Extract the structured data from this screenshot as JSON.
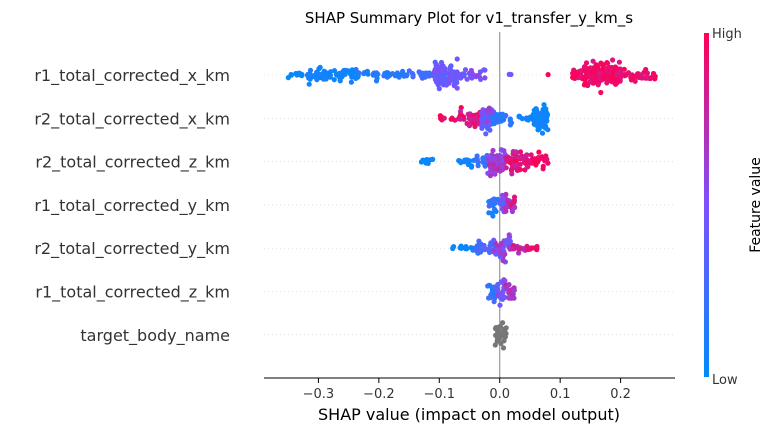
{
  "chart_data": {
    "type": "scatter",
    "title": "SHAP Summary Plot for v1_transfer_y_km_s",
    "xlabel": "SHAP value (impact on model output)",
    "xlim": [
      -0.39,
      0.29
    ],
    "xticks": [
      {
        "value": -0.3,
        "label": "−0.3"
      },
      {
        "value": -0.2,
        "label": "−0.2"
      },
      {
        "value": -0.1,
        "label": "−0.1"
      },
      {
        "value": 0.0,
        "label": "0.0"
      },
      {
        "value": 0.1,
        "label": "0.1"
      },
      {
        "value": 0.2,
        "label": "0.2"
      }
    ],
    "colorbar": {
      "label": "Feature value",
      "high_label": "High",
      "low_label": "Low",
      "low_color": "#008bfb",
      "high_color": "#ff0052"
    },
    "no_value_color": "#777777",
    "features": [
      {
        "name": "r1_total_corrected_x_km",
        "segments": [
          {
            "x": [
              -0.355,
              -0.32
            ],
            "count": 10,
            "width": 0.25,
            "f": [
              0.0,
              0.05
            ]
          },
          {
            "x": [
              -0.32,
              -0.24
            ],
            "count": 60,
            "width": 0.55,
            "f": [
              0.0,
              0.12
            ]
          },
          {
            "x": [
              -0.24,
              -0.16
            ],
            "count": 40,
            "width": 0.4,
            "f": [
              0.05,
              0.2
            ]
          },
          {
            "x": [
              -0.16,
              -0.11
            ],
            "count": 25,
            "width": 0.35,
            "f": [
              0.15,
              0.35
            ]
          },
          {
            "x": [
              -0.11,
              -0.07
            ],
            "count": 90,
            "width": 0.95,
            "f": [
              0.35,
              0.55
            ]
          },
          {
            "x": [
              -0.07,
              -0.02
            ],
            "count": 30,
            "width": 0.35,
            "f": [
              0.4,
              0.6
            ]
          },
          {
            "x": [
              0.015,
              0.02
            ],
            "count": 2,
            "width": 0.1,
            "f": [
              0.4,
              0.5
            ]
          },
          {
            "x": [
              0.08,
              0.08
            ],
            "count": 1,
            "width": 0.05,
            "f": [
              0.9,
              1.0
            ]
          },
          {
            "x": [
              0.12,
              0.14
            ],
            "count": 30,
            "width": 0.55,
            "f": [
              0.85,
              1.0
            ]
          },
          {
            "x": [
              0.14,
              0.2
            ],
            "count": 140,
            "width": 1.0,
            "f": [
              0.85,
              1.0
            ]
          },
          {
            "x": [
              0.2,
              0.26
            ],
            "count": 40,
            "width": 0.45,
            "f": [
              0.85,
              1.0
            ]
          }
        ]
      },
      {
        "name": "r2_total_corrected_x_km",
        "segments": [
          {
            "x": [
              -0.1,
              -0.065
            ],
            "count": 10,
            "width": 0.2,
            "f": [
              0.85,
              1.0
            ]
          },
          {
            "x": [
              -0.065,
              -0.03
            ],
            "count": 40,
            "width": 0.6,
            "f": [
              0.7,
              1.0
            ]
          },
          {
            "x": [
              -0.03,
              -0.01
            ],
            "count": 60,
            "width": 0.9,
            "f": [
              0.3,
              0.65
            ]
          },
          {
            "x": [
              -0.01,
              0.02
            ],
            "count": 25,
            "width": 0.4,
            "f": [
              0.05,
              0.3
            ]
          },
          {
            "x": [
              0.02,
              0.055
            ],
            "count": 10,
            "width": 0.2,
            "f": [
              0.0,
              0.1
            ]
          },
          {
            "x": [
              0.055,
              0.08
            ],
            "count": 80,
            "width": 0.85,
            "f": [
              0.0,
              0.1
            ]
          }
        ]
      },
      {
        "name": "r2_total_corrected_z_km",
        "segments": [
          {
            "x": [
              -0.135,
              -0.11
            ],
            "count": 12,
            "width": 0.3,
            "f": [
              0.0,
              0.08
            ]
          },
          {
            "x": [
              -0.07,
              -0.04
            ],
            "count": 14,
            "width": 0.35,
            "f": [
              0.0,
              0.15
            ]
          },
          {
            "x": [
              -0.04,
              -0.02
            ],
            "count": 15,
            "width": 0.5,
            "f": [
              0.15,
              0.35
            ]
          },
          {
            "x": [
              -0.02,
              0.01
            ],
            "count": 70,
            "width": 1.0,
            "f": [
              0.45,
              0.75
            ]
          },
          {
            "x": [
              0.01,
              0.05
            ],
            "count": 60,
            "width": 0.75,
            "f": [
              0.75,
              1.0
            ]
          },
          {
            "x": [
              0.05,
              0.08
            ],
            "count": 25,
            "width": 0.6,
            "f": [
              0.85,
              1.0
            ]
          }
        ]
      },
      {
        "name": "r1_total_corrected_y_km",
        "segments": [
          {
            "x": [
              -0.02,
              0.0
            ],
            "count": 20,
            "width": 0.7,
            "f": [
              0.0,
              0.3
            ]
          },
          {
            "x": [
              0.0,
              0.01
            ],
            "count": 20,
            "width": 0.8,
            "f": [
              0.3,
              0.6
            ]
          },
          {
            "x": [
              0.01,
              0.025
            ],
            "count": 20,
            "width": 0.7,
            "f": [
              0.6,
              0.9
            ]
          }
        ]
      },
      {
        "name": "r2_total_corrected_y_km",
        "segments": [
          {
            "x": [
              -0.085,
              -0.04
            ],
            "count": 15,
            "width": 0.2,
            "f": [
              0.0,
              0.08
            ]
          },
          {
            "x": [
              -0.04,
              -0.01
            ],
            "count": 25,
            "width": 0.55,
            "f": [
              0.15,
              0.4
            ]
          },
          {
            "x": [
              -0.01,
              0.02
            ],
            "count": 45,
            "width": 1.0,
            "f": [
              0.35,
              0.75
            ]
          },
          {
            "x": [
              0.02,
              0.045
            ],
            "count": 15,
            "width": 0.35,
            "f": [
              0.65,
              0.9
            ]
          },
          {
            "x": [
              0.045,
              0.065
            ],
            "count": 8,
            "width": 0.2,
            "f": [
              0.85,
              1.0
            ]
          }
        ]
      },
      {
        "name": "r1_total_corrected_z_km",
        "segments": [
          {
            "x": [
              -0.02,
              -0.005
            ],
            "count": 15,
            "width": 0.7,
            "f": [
              0.1,
              0.35
            ]
          },
          {
            "x": [
              -0.005,
              0.01
            ],
            "count": 25,
            "width": 0.9,
            "f": [
              0.35,
              0.6
            ]
          },
          {
            "x": [
              0.01,
              0.025
            ],
            "count": 20,
            "width": 0.7,
            "f": [
              0.6,
              0.85
            ]
          }
        ]
      },
      {
        "name": "target_body_name",
        "segments": [
          {
            "x": [
              -0.008,
              0.012
            ],
            "count": 35,
            "width": 0.85,
            "grey": true
          }
        ]
      }
    ]
  }
}
